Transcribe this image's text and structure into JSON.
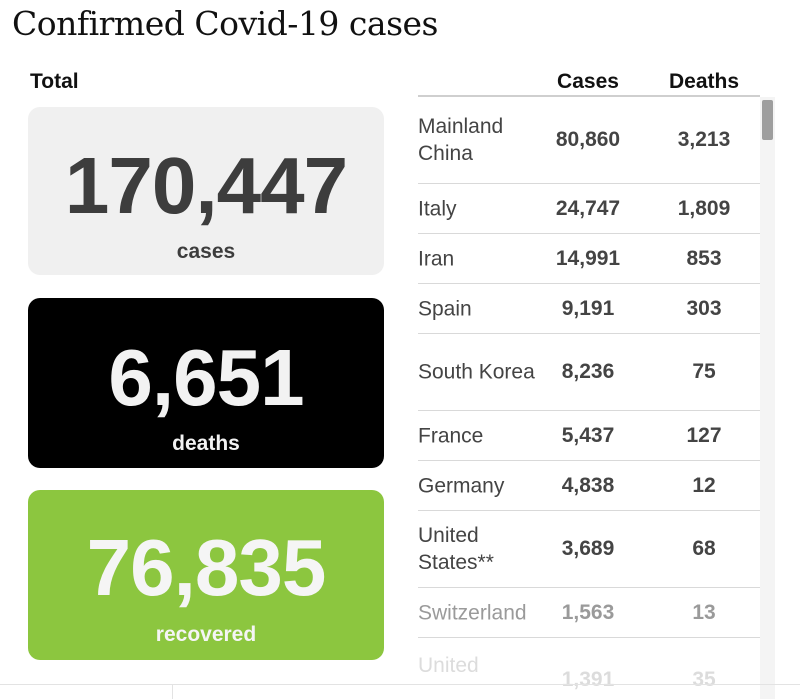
{
  "title": "Confirmed Covid-19 cases",
  "total_label": "Total",
  "stats": {
    "cases": {
      "value": "170,447",
      "label": "cases",
      "color": "#f0f0f0"
    },
    "deaths": {
      "value": "6,651",
      "label": "deaths",
      "color": "#000000"
    },
    "recovered": {
      "value": "76,835",
      "label": "recovered",
      "color": "#8cc63f"
    }
  },
  "table": {
    "headers": {
      "cases": "Cases",
      "deaths": "Deaths"
    },
    "rows": [
      {
        "country": "Mainland China",
        "cases": "80,860",
        "deaths": "3,213"
      },
      {
        "country": "Italy",
        "cases": "24,747",
        "deaths": "1,809"
      },
      {
        "country": "Iran",
        "cases": "14,991",
        "deaths": "853"
      },
      {
        "country": "Spain",
        "cases": "9,191",
        "deaths": "303"
      },
      {
        "country": "South Korea",
        "cases": "8,236",
        "deaths": "75"
      },
      {
        "country": "France",
        "cases": "5,437",
        "deaths": "127"
      },
      {
        "country": "Germany",
        "cases": "4,838",
        "deaths": "12"
      },
      {
        "country": "United States**",
        "cases": "3,689",
        "deaths": "68"
      },
      {
        "country": "Switzerland",
        "cases": "1,563",
        "deaths": "13"
      },
      {
        "country": "United",
        "cases": "1,391",
        "deaths": "35"
      }
    ]
  }
}
